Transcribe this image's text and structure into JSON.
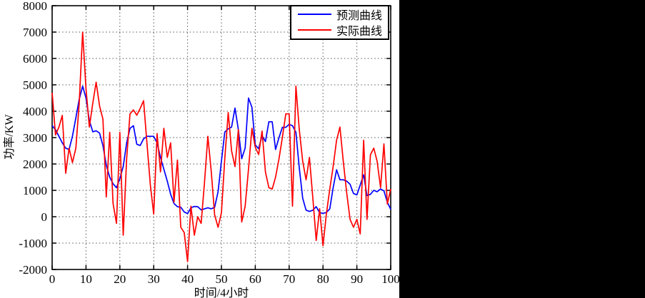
{
  "window": {
    "outer_background": "#000000",
    "panel_background": "#ffffff",
    "axis_color": "#000000",
    "grid_color": "#545454"
  },
  "chart_data": {
    "type": "line",
    "title": "",
    "xlabel": "时间/4小时",
    "ylabel": "功率/KW",
    "xlim": [
      0,
      100
    ],
    "ylim": [
      -2000,
      8000
    ],
    "xticks": [
      0,
      10,
      20,
      30,
      40,
      50,
      60,
      70,
      80,
      90,
      100
    ],
    "yticks": [
      -2000,
      -1000,
      0,
      1000,
      2000,
      3000,
      4000,
      5000,
      6000,
      7000,
      8000
    ],
    "grid": "dotted",
    "legend_position": "top-right",
    "x": [
      0,
      1,
      2,
      3,
      4,
      5,
      6,
      7,
      8,
      9,
      10,
      11,
      12,
      13,
      14,
      15,
      16,
      17,
      18,
      19,
      20,
      21,
      22,
      23,
      24,
      25,
      26,
      27,
      28,
      29,
      30,
      31,
      32,
      33,
      34,
      35,
      36,
      37,
      38,
      39,
      40,
      41,
      42,
      43,
      44,
      45,
      46,
      47,
      48,
      49,
      50,
      51,
      52,
      53,
      54,
      55,
      56,
      57,
      58,
      59,
      60,
      61,
      62,
      63,
      64,
      65,
      66,
      67,
      68,
      69,
      70,
      71,
      72,
      73,
      74,
      75,
      76,
      77,
      78,
      79,
      80,
      81,
      82,
      83,
      84,
      85,
      86,
      87,
      88,
      89,
      90,
      91,
      92,
      93,
      94,
      95,
      96,
      97,
      98,
      99,
      100
    ],
    "series": [
      {
        "name": "预测曲线",
        "color": "#0000ff",
        "values": [
          3450,
          3300,
          3050,
          2800,
          2600,
          2550,
          3050,
          3750,
          4450,
          4950,
          4500,
          3650,
          3220,
          3260,
          3170,
          2700,
          1950,
          1500,
          1250,
          1100,
          1450,
          1900,
          2800,
          3350,
          3450,
          2750,
          2700,
          2950,
          3050,
          3050,
          3050,
          2800,
          2250,
          1800,
          1350,
          850,
          500,
          380,
          360,
          180,
          120,
          340,
          390,
          380,
          260,
          300,
          340,
          300,
          360,
          950,
          2100,
          3210,
          3330,
          3400,
          4120,
          3300,
          2200,
          2600,
          4500,
          4150,
          2720,
          2580,
          3070,
          2850,
          3600,
          3600,
          2550,
          3000,
          3390,
          3390,
          3500,
          3450,
          3200,
          1850,
          700,
          250,
          200,
          250,
          380,
          150,
          130,
          160,
          300,
          1100,
          1780,
          1400,
          1400,
          1350,
          1230,
          880,
          830,
          1200,
          1590,
          800,
          850,
          1000,
          950,
          1050,
          980,
          550,
          280
        ]
      },
      {
        "name": "实际曲线",
        "color": "#ff0000",
        "values": [
          4700,
          3100,
          3400,
          3840,
          1650,
          2600,
          2050,
          2600,
          4300,
          7000,
          4850,
          3400,
          4300,
          5100,
          4200,
          3700,
          750,
          3200,
          500,
          -250,
          3200,
          -700,
          2200,
          3900,
          4050,
          3850,
          4100,
          4400,
          2800,
          1200,
          100,
          3150,
          1700,
          3350,
          2250,
          2800,
          550,
          2150,
          -400,
          -600,
          -1700,
          400,
          -700,
          0,
          -250,
          1300,
          3050,
          1700,
          70,
          -400,
          150,
          2200,
          3950,
          2500,
          1900,
          3300,
          -200,
          400,
          1800,
          3350,
          2630,
          2360,
          3250,
          1700,
          1100,
          1050,
          1500,
          2200,
          3000,
          3900,
          3900,
          400,
          4950,
          3300,
          2100,
          1400,
          2250,
          700,
          -900,
          300,
          -1100,
          100,
          1050,
          1900,
          2900,
          3400,
          2100,
          900,
          -100,
          -400,
          -100,
          -650,
          2900,
          -100,
          2350,
          2600,
          2100,
          1100,
          2760,
          480,
          1050
        ]
      }
    ]
  }
}
